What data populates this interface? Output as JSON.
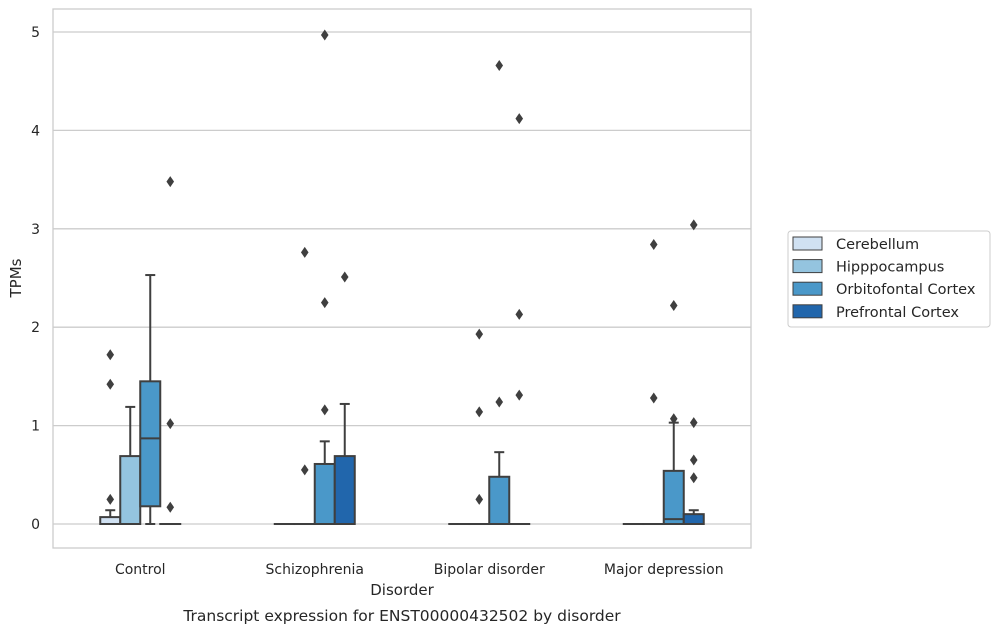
{
  "chart_data": {
    "type": "box",
    "title": "",
    "caption": "Transcript expression for ENST00000432502 by disorder",
    "xlabel": "Disorder",
    "ylabel": "TPMs",
    "ylim": [
      -0.24,
      5.24
    ],
    "yticks": [
      0,
      1,
      2,
      3,
      4,
      5
    ],
    "categories": [
      "Control",
      "Schizophrenia",
      "Bipolar disorder",
      "Major depression"
    ],
    "grid": "horizontal",
    "legend_position": "right",
    "series": [
      {
        "name": "Cerebellum",
        "color": "#d0e1f2",
        "boxes": [
          {
            "q1": 0,
            "median": 0,
            "q3": 0.07,
            "whislo": 0,
            "whishi": 0.14,
            "fliers": [
              0.25,
              1.42,
              1.72
            ]
          },
          {
            "q1": 0,
            "median": 0,
            "q3": 0,
            "whislo": 0,
            "whishi": 0,
            "fliers": []
          },
          {
            "q1": 0,
            "median": 0,
            "q3": 0,
            "whislo": 0,
            "whishi": 0,
            "fliers": []
          },
          {
            "q1": 0,
            "median": 0,
            "q3": 0,
            "whislo": 0,
            "whishi": 0,
            "fliers": []
          }
        ]
      },
      {
        "name": "Hipppocampus",
        "color": "#94c4df",
        "boxes": [
          {
            "q1": 0,
            "median": 0,
            "q3": 0.69,
            "whislo": 0,
            "whishi": 1.19,
            "fliers": []
          },
          {
            "q1": 0,
            "median": 0,
            "q3": 0,
            "whislo": 0,
            "whishi": 0,
            "fliers": [
              0.55,
              2.76
            ]
          },
          {
            "q1": 0,
            "median": 0,
            "q3": 0,
            "whislo": 0,
            "whishi": 0,
            "fliers": [
              0.25,
              1.14,
              1.93
            ]
          },
          {
            "q1": 0,
            "median": 0,
            "q3": 0,
            "whislo": 0,
            "whishi": 0,
            "fliers": [
              1.28,
              2.84
            ]
          }
        ]
      },
      {
        "name": "Orbitofontal Cortex",
        "color": "#4a98c9",
        "boxes": [
          {
            "q1": 0.18,
            "median": 0.87,
            "q3": 1.45,
            "whislo": 0,
            "whishi": 2.53,
            "fliers": []
          },
          {
            "q1": 0,
            "median": 0,
            "q3": 0.61,
            "whislo": 0,
            "whishi": 0.84,
            "fliers": [
              1.16,
              2.25,
              4.97
            ]
          },
          {
            "q1": 0,
            "median": 0,
            "q3": 0.48,
            "whislo": 0,
            "whishi": 0.73,
            "fliers": [
              1.24,
              4.66
            ]
          },
          {
            "q1": 0,
            "median": 0.05,
            "q3": 0.54,
            "whislo": 0,
            "whishi": 1.03,
            "fliers": [
              1.07,
              2.22
            ]
          }
        ]
      },
      {
        "name": "Prefrontal Cortex",
        "color": "#2166ac",
        "boxes": [
          {
            "q1": 0,
            "median": 0,
            "q3": 0,
            "whislo": 0,
            "whishi": 0,
            "fliers": [
              0.17,
              1.02,
              3.48
            ]
          },
          {
            "q1": 0,
            "median": 0,
            "q3": 0.69,
            "whislo": 0,
            "whishi": 1.22,
            "fliers": [
              2.51
            ]
          },
          {
            "q1": 0,
            "median": 0,
            "q3": 0,
            "whislo": 0,
            "whishi": 0,
            "fliers": [
              1.31,
              2.13,
              4.12
            ]
          },
          {
            "q1": 0,
            "median": 0,
            "q3": 0.1,
            "whislo": 0,
            "whishi": 0.14,
            "fliers": [
              0.47,
              0.65,
              1.03,
              3.04
            ]
          }
        ]
      }
    ]
  }
}
